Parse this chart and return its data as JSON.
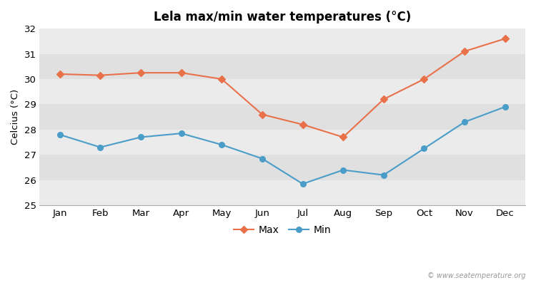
{
  "title": "Lela max/min water temperatures (°C)",
  "ylabel": "Celcius (°C)",
  "months": [
    "Jan",
    "Feb",
    "Mar",
    "Apr",
    "May",
    "Jun",
    "Jul",
    "Aug",
    "Sep",
    "Oct",
    "Nov",
    "Dec"
  ],
  "max_temps": [
    30.2,
    30.15,
    30.25,
    30.25,
    30.0,
    28.6,
    28.2,
    27.7,
    29.2,
    30.0,
    31.1,
    31.6
  ],
  "min_temps": [
    27.8,
    27.3,
    27.7,
    27.85,
    27.4,
    26.85,
    25.85,
    26.4,
    26.2,
    27.25,
    28.3,
    28.9
  ],
  "max_color": "#E8714A",
  "min_color": "#4A9DC8",
  "fig_background": "#ffffff",
  "plot_bg_light": "#ebebeb",
  "plot_bg_dark": "#e0e0e0",
  "ylim": [
    25,
    32
  ],
  "yticks": [
    25,
    26,
    27,
    28,
    29,
    30,
    31,
    32
  ],
  "watermark": "© www.seatemperature.org",
  "legend_max": "Max",
  "legend_min": "Min"
}
